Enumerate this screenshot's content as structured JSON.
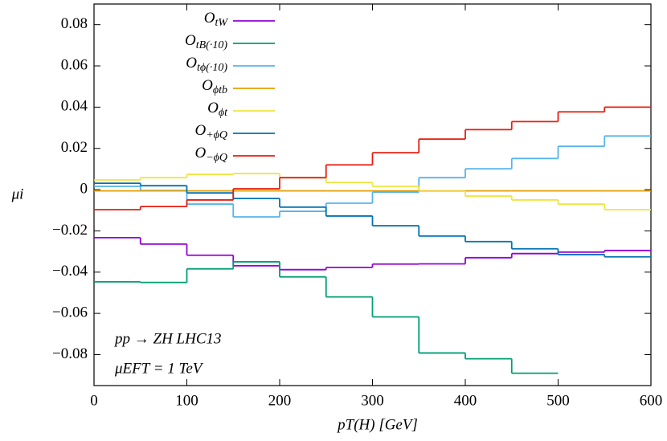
{
  "chart_data": {
    "type": "histogram",
    "xlabel": "pT(H) [GeV]",
    "ylabel": "μi",
    "annotations": [
      "pp → ZH LHC13",
      "μEFT = 1 TeV"
    ],
    "bins": [
      0,
      50,
      100,
      150,
      200,
      250,
      300,
      350,
      400,
      450,
      500,
      550,
      600
    ],
    "xlim": [
      0,
      600
    ],
    "xticks": [
      0,
      100,
      200,
      300,
      400,
      500,
      600
    ],
    "ylim": [
      -0.095,
      0.09
    ],
    "yticks": [
      {
        "value": -0.08,
        "label": "−0.08"
      },
      {
        "value": -0.06,
        "label": "−0.06"
      },
      {
        "value": -0.04,
        "label": "−0.04"
      },
      {
        "value": -0.02,
        "label": "−0.02"
      },
      0,
      0.02,
      0.04,
      0.06,
      0.08
    ],
    "grid": false,
    "legend": "upper-left",
    "series": [
      {
        "name": "OtW",
        "color": "#9400d3",
        "values": [
          -0.0233,
          -0.0264,
          -0.0318,
          -0.0369,
          -0.0388,
          -0.0377,
          -0.0361,
          -0.036,
          -0.033,
          -0.031,
          -0.0303,
          -0.0295
        ]
      },
      {
        "name": "OtB(·10)",
        "color": "#009e73",
        "values": [
          -0.0447,
          -0.045,
          -0.0384,
          -0.035,
          -0.0423,
          -0.052,
          -0.0617,
          -0.0792,
          -0.082,
          -0.089,
          null,
          null
        ]
      },
      {
        "name": "Otϕ(·10)",
        "color": "#56b4e9",
        "values": [
          0.0016,
          -0.0004,
          -0.007,
          -0.0132,
          -0.0105,
          -0.0066,
          -0.0012,
          0.0058,
          0.0101,
          0.0151,
          0.021,
          0.026
        ]
      },
      {
        "name": "Oϕtb",
        "color": "#e69f00",
        "values": [
          -0.0006,
          -0.0006,
          -0.0006,
          -0.0006,
          -0.0006,
          -0.0006,
          -0.0006,
          -0.0006,
          -0.0006,
          -0.0006,
          -0.0006,
          -0.0006
        ]
      },
      {
        "name": "Oϕt",
        "color": "#f0e442",
        "values": [
          0.0047,
          0.0058,
          0.0074,
          0.0078,
          0.0058,
          0.0035,
          0.0016,
          -0.0008,
          -0.0031,
          -0.005,
          -0.007,
          -0.0097
        ]
      },
      {
        "name": "O+ϕQ",
        "color": "#0072b2",
        "values": [
          0.0031,
          0.0019,
          -0.0016,
          -0.0043,
          -0.0085,
          -0.0128,
          -0.0175,
          -0.0225,
          -0.0252,
          -0.0287,
          -0.0315,
          -0.0326
        ]
      },
      {
        "name": "O−ϕQ",
        "color": "#e51e10",
        "values": [
          -0.0097,
          -0.0082,
          -0.005,
          0.0004,
          0.0058,
          0.012,
          0.0179,
          0.0245,
          0.0291,
          0.033,
          0.0377,
          0.04
        ]
      }
    ]
  }
}
